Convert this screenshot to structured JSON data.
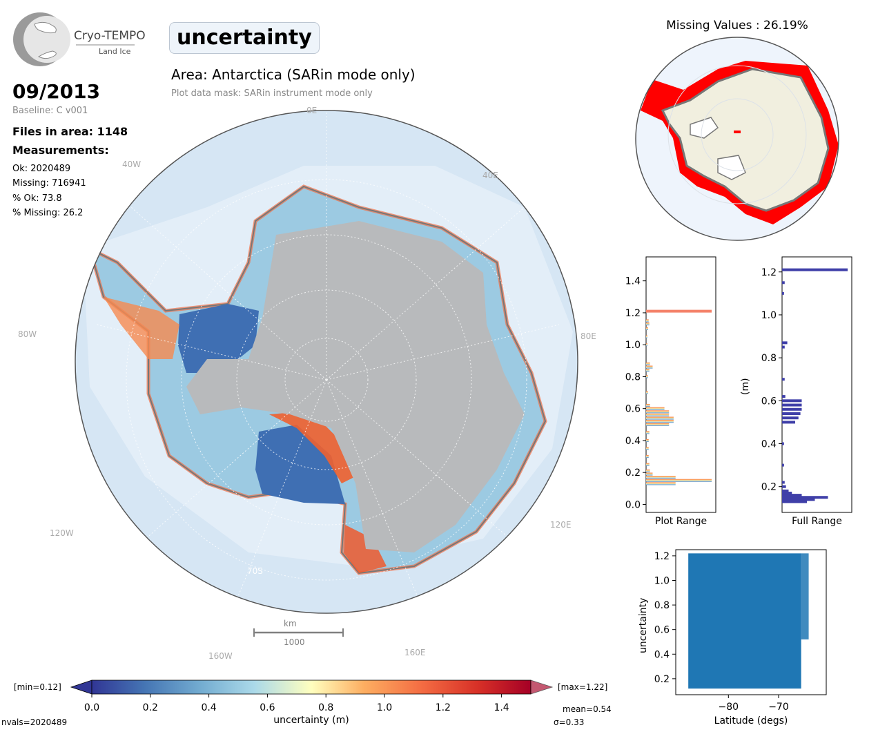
{
  "logo": {
    "name": "Cryo-TEMPO",
    "subtitle": "Land Ice"
  },
  "header": {
    "parameter": "uncertainty",
    "area_title": "Area: Antarctica (SARin mode only)",
    "mask_note": "Plot data mask: SARin instrument mode only"
  },
  "info": {
    "date": "09/2013",
    "baseline": "Baseline: C v001",
    "files": "Files in area: 1148",
    "measurements_title": "Measurements:",
    "ok": "Ok: 2020489",
    "missing": "Missing: 716941",
    "pct_ok": "% Ok: 73.8",
    "pct_missing": "% Missing: 26.2"
  },
  "map": {
    "longitude_labels": [
      "0E",
      "40W",
      "40E",
      "80W",
      "80E",
      "120W",
      "120E",
      "160W",
      "160E"
    ],
    "latitude_label": "70S",
    "scalebar": {
      "unit": "km",
      "value": "1000"
    },
    "ocean_color": "#d6e6f4",
    "ice_color": "#b8babc"
  },
  "missing_map": {
    "title": "Missing Values : 26.19%",
    "missing_color": "#ff0000",
    "land_color": "#f1efdf"
  },
  "colorbar": {
    "min_label": "[min=0.12]",
    "max_label": "[max=1.22]",
    "ticks": [
      "0.0",
      "0.2",
      "0.4",
      "0.6",
      "0.8",
      "1.0",
      "1.2",
      "1.4"
    ],
    "label": "uncertainty (m)",
    "mean": "mean=0.54",
    "sigma": "σ=0.33",
    "nvals": "nvals=2020489",
    "colormap": "RdYlBu_r"
  },
  "chart_data": [
    {
      "type": "bar",
      "title": "",
      "xlabel": "Plot Range",
      "ylabel": "",
      "ylim": [
        -0.05,
        1.55
      ],
      "yticks": [
        "0.0",
        "0.2",
        "0.4",
        "0.6",
        "0.8",
        "1.0",
        "1.2",
        "1.4"
      ],
      "orientation": "horizontal",
      "bins": [
        0.13,
        0.15,
        0.17,
        0.19,
        0.21,
        0.25,
        0.3,
        0.35,
        0.4,
        0.45,
        0.5,
        0.52,
        0.54,
        0.56,
        0.58,
        0.6,
        0.62,
        0.7,
        0.8,
        0.84,
        0.86,
        0.88,
        1.0,
        1.05,
        1.1,
        1.13,
        1.15,
        1.21
      ],
      "values": [
        0.45,
        1.0,
        0.45,
        0.1,
        0.06,
        0.05,
        0.04,
        0.04,
        0.04,
        0.05,
        0.35,
        0.42,
        0.42,
        0.35,
        0.35,
        0.28,
        0.06,
        0.03,
        0.03,
        0.05,
        0.1,
        0.06,
        0.02,
        0.02,
        0.03,
        0.05,
        0.04,
        1.0
      ]
    },
    {
      "type": "bar",
      "title": "",
      "xlabel": "Full Range",
      "ylabel": "(m)",
      "ylim": [
        0.08,
        1.27
      ],
      "yticks": [
        "0.2",
        "0.4",
        "0.6",
        "0.8",
        "1.0",
        "1.2"
      ],
      "orientation": "horizontal",
      "bins": [
        0.13,
        0.14,
        0.15,
        0.16,
        0.17,
        0.18,
        0.2,
        0.22,
        0.3,
        0.4,
        0.5,
        0.52,
        0.54,
        0.56,
        0.58,
        0.6,
        0.62,
        0.7,
        0.85,
        0.87,
        1.1,
        1.15,
        1.21
      ],
      "values": [
        0.38,
        0.5,
        0.7,
        0.3,
        0.15,
        0.1,
        0.06,
        0.04,
        0.03,
        0.03,
        0.2,
        0.25,
        0.28,
        0.3,
        0.3,
        0.3,
        0.05,
        0.04,
        0.04,
        0.08,
        0.03,
        0.04,
        1.0
      ]
    },
    {
      "type": "scatter",
      "title": "",
      "xlabel": "Latitude (degs)",
      "ylabel": "uncertainty",
      "xlim": [
        -90.5,
        -60.5
      ],
      "ylim": [
        0.07,
        1.25
      ],
      "xticks": [
        "−80",
        "−70"
      ],
      "yticks": [
        "0.2",
        "0.4",
        "0.6",
        "0.8",
        "1.0",
        "1.2"
      ],
      "x_range": [
        -88.0,
        -64.0
      ],
      "y_range": [
        0.12,
        1.22
      ],
      "color": "#1f77b4"
    }
  ]
}
